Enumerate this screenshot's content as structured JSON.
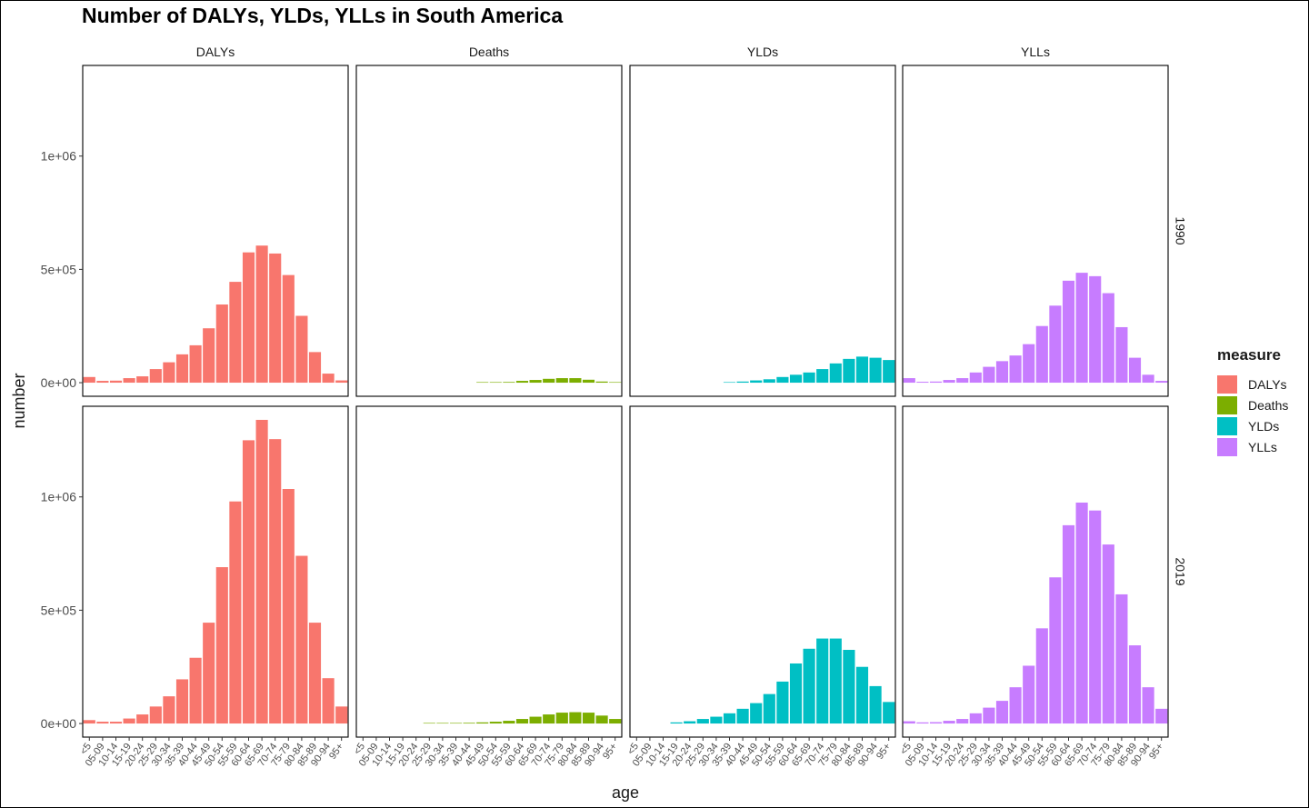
{
  "title": "Number of DALYs, YLDs, YLLs in South America",
  "chart_data": {
    "type": "bar",
    "layout": "facet_grid",
    "xlabel": "age",
    "ylabel": "number",
    "categories": [
      "<5",
      "05-09",
      "10-14",
      "15-19",
      "20-24",
      "25-29",
      "30-34",
      "35-39",
      "40-44",
      "45-49",
      "50-54",
      "55-59",
      "60-64",
      "65-69",
      "70-74",
      "75-79",
      "80-84",
      "85-89",
      "90-94",
      "95+"
    ],
    "ylim": [
      -60000,
      1400000
    ],
    "yticks": [
      0,
      500000,
      1000000
    ],
    "ytick_labels": [
      "0e+00",
      "5e+05",
      "1e+06"
    ],
    "grid": false,
    "columns": [
      "DALYs",
      "Deaths",
      "YLDs",
      "YLLs"
    ],
    "rows": [
      "1990",
      "2019"
    ],
    "colors": {
      "DALYs": "#F8766D",
      "Deaths": "#7CAE00",
      "YLDs": "#00BFC4",
      "YLLs": "#C77CFF"
    },
    "legend": {
      "title": "measure",
      "position": "right",
      "items": [
        "DALYs",
        "Deaths",
        "YLDs",
        "YLLs"
      ]
    },
    "panels": [
      {
        "row": "1990",
        "column": "DALYs",
        "values": [
          25000,
          8000,
          9000,
          20000,
          28000,
          60000,
          90000,
          125000,
          165000,
          240000,
          345000,
          445000,
          575000,
          605000,
          570000,
          475000,
          295000,
          135000,
          40000,
          10000
        ]
      },
      {
        "row": "1990",
        "column": "Deaths",
        "values": [
          0,
          0,
          0,
          0,
          0,
          0,
          0,
          0,
          0,
          500,
          1500,
          3000,
          8000,
          12000,
          17000,
          20000,
          20000,
          13000,
          5000,
          1000
        ]
      },
      {
        "row": "1990",
        "column": "YLDs",
        "values": [
          0,
          0,
          0,
          0,
          0,
          0,
          0,
          2000,
          5000,
          10000,
          15000,
          25000,
          35000,
          45000,
          60000,
          85000,
          105000,
          115000,
          110000,
          100000
        ]
      },
      {
        "row": "1990",
        "column": "YLLs",
        "values": [
          20000,
          4000,
          5000,
          12000,
          20000,
          45000,
          70000,
          95000,
          120000,
          170000,
          250000,
          340000,
          450000,
          485000,
          470000,
          395000,
          245000,
          110000,
          35000,
          8000
        ]
      },
      {
        "row": "2019",
        "column": "DALYs",
        "values": [
          15000,
          8000,
          8000,
          22000,
          40000,
          75000,
          120000,
          195000,
          290000,
          445000,
          690000,
          980000,
          1250000,
          1340000,
          1255000,
          1035000,
          740000,
          445000,
          200000,
          75000
        ]
      },
      {
        "row": "2019",
        "column": "Deaths",
        "values": [
          0,
          0,
          0,
          0,
          0,
          500,
          1000,
          2000,
          3000,
          5000,
          8000,
          12000,
          20000,
          30000,
          40000,
          48000,
          50000,
          48000,
          35000,
          20000
        ]
      },
      {
        "row": "2019",
        "column": "YLDs",
        "values": [
          0,
          0,
          0,
          5000,
          10000,
          20000,
          30000,
          45000,
          65000,
          90000,
          130000,
          185000,
          265000,
          330000,
          375000,
          375000,
          325000,
          250000,
          165000,
          95000
        ]
      },
      {
        "row": "2019",
        "column": "YLLs",
        "values": [
          10000,
          5000,
          6000,
          12000,
          20000,
          45000,
          70000,
          100000,
          160000,
          255000,
          420000,
          645000,
          875000,
          975000,
          940000,
          790000,
          570000,
          345000,
          160000,
          65000
        ]
      }
    ]
  }
}
